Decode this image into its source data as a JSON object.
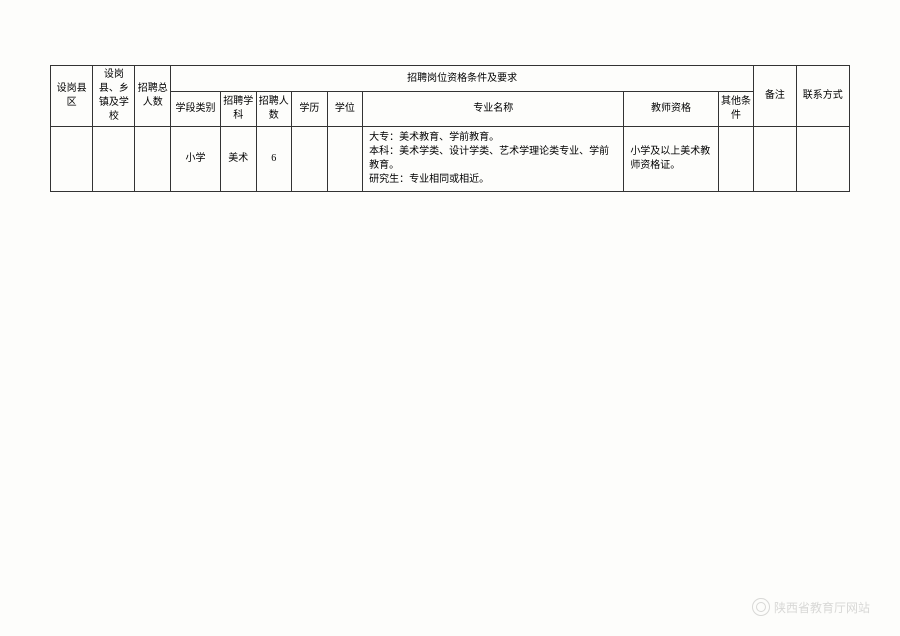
{
  "table": {
    "headers": {
      "col1": "设岗县区",
      "col2": "设岗县、乡镇及学校",
      "col3": "招聘总人数",
      "group_header": "招聘岗位资格条件及要求",
      "col4": "学段类别",
      "col5": "招聘学科",
      "col6": "招聘人数",
      "col7": "学历",
      "col8": "学位",
      "col9": "专业名称",
      "col10": "教师资格",
      "col11": "其他条件",
      "col12": "备注",
      "col13": "联系方式"
    },
    "rows": [
      {
        "county": "",
        "township": "",
        "total_count": "",
        "level": "小学",
        "subject": "美术",
        "count": "6",
        "education": "",
        "degree": "",
        "major": "大专：美术教育、学前教育。\n本科：美术学类、设计学类、艺术学理论类专业、学前教育。\n研究生：专业相同或相近。",
        "teacher_cert": "小学及以上美术教师资格证。",
        "other": "",
        "remark": "",
        "contact": ""
      }
    ]
  },
  "watermark": "陕西省教育厅网站",
  "colors": {
    "background": "#fdfdfb",
    "border": "#333333",
    "text": "#000000",
    "watermark": "#d8d8d6"
  }
}
